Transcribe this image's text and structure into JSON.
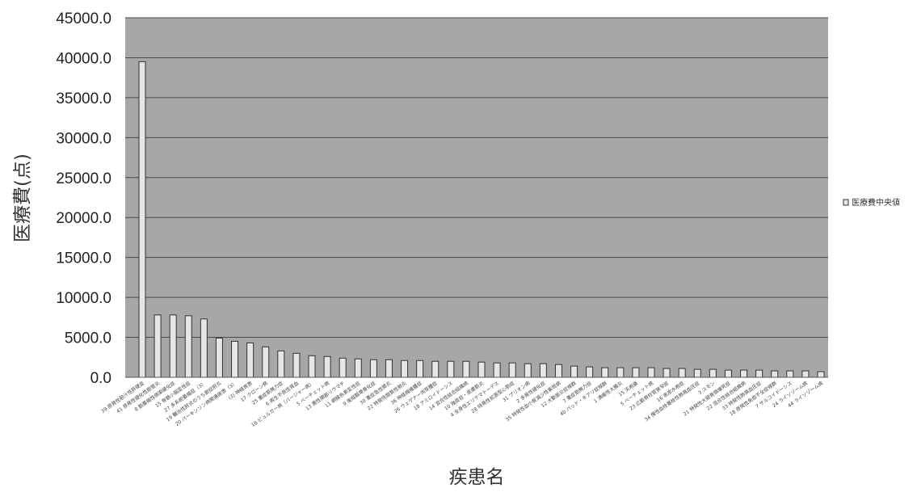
{
  "chart_data": {
    "type": "bar",
    "title": "",
    "xlabel": "疾患名",
    "ylabel": "医療費(点)",
    "ylim": [
      0,
      45000
    ],
    "yticks": [
      "0.0",
      "5000.0",
      "10000.0",
      "15000.0",
      "20000.0",
      "25000.0",
      "30000.0",
      "35000.0",
      "40000.0",
      "45000.0"
    ],
    "grid": true,
    "legend_position": "right",
    "series": [
      {
        "name": "医療費中央値",
        "color": "#e6e6e6",
        "values": [
          39500,
          7800,
          7800,
          7700,
          7300,
          4900,
          4500,
          4300,
          3800,
          3300,
          3000,
          2700,
          2600,
          2400,
          2300,
          2200,
          2200,
          2100,
          2100,
          2000,
          2000,
          2000,
          1900,
          1800,
          1800,
          1700,
          1700,
          1600,
          1400,
          1300,
          1200,
          1200,
          1200,
          1200,
          1100,
          1100,
          1000,
          1000,
          900,
          900,
          900,
          800,
          800,
          800,
          700
        ]
      }
    ],
    "categories": [
      "39 原発性胆汁性肝硬変",
      "41 原発性硬化性胆管炎",
      "8 筋萎縮性側索硬化症",
      "15 脊髄小脳変性症",
      "27 多系統萎縮症（3）",
      "19 難治性肝炎のうち劇症肝炎",
      "20 パーキンソン病関連疾患（3）",
      "(3) 神経疾患",
      "17 クローン病",
      "25 重症筋無力症",
      "6 再生不良性貧血",
      "16 ビュルガー病（バージャー病）",
      "5 ベーチェット病",
      "13 悪性関節リウマチ",
      "11 網膜色素変性症",
      "9 後縦靱帯骨化症",
      "30 重症急性膵炎",
      "22 特発性間質性肺炎",
      "36 神経線維腫症",
      "26 ウェゲナー肉芽腫症",
      "18 アミロイドーシス",
      "14 混合性結合組織病",
      "10 強皮症・皮膚筋炎",
      "4 全身性エリテマトーデス",
      "28 特発性拡張型心筋症",
      "31 プリオン病",
      "2 多発性硬化症",
      "35 特発性血小板減少性紫斑病",
      "12 大動脈炎症候群",
      "7 重症筋無力症",
      "40 バッド・キアリ症候群",
      "1 潰瘍性大腸炎",
      "15 天疱瘡",
      "5 ベーチェット病",
      "23 広範脊柱管狭窄症",
      "16 表皮水疱症",
      "34 慢性血栓塞栓性肺高血圧症",
      "3 スモン",
      "21 特発性大腿骨頭壊死症",
      "22 混合性結合組織病",
      "33 特発性肺高血圧症",
      "18 原発性免疫不全症候群",
      "7 サルコイドーシス",
      "24 ライソゾーム病",
      "44 ライソゾーム病"
    ]
  }
}
